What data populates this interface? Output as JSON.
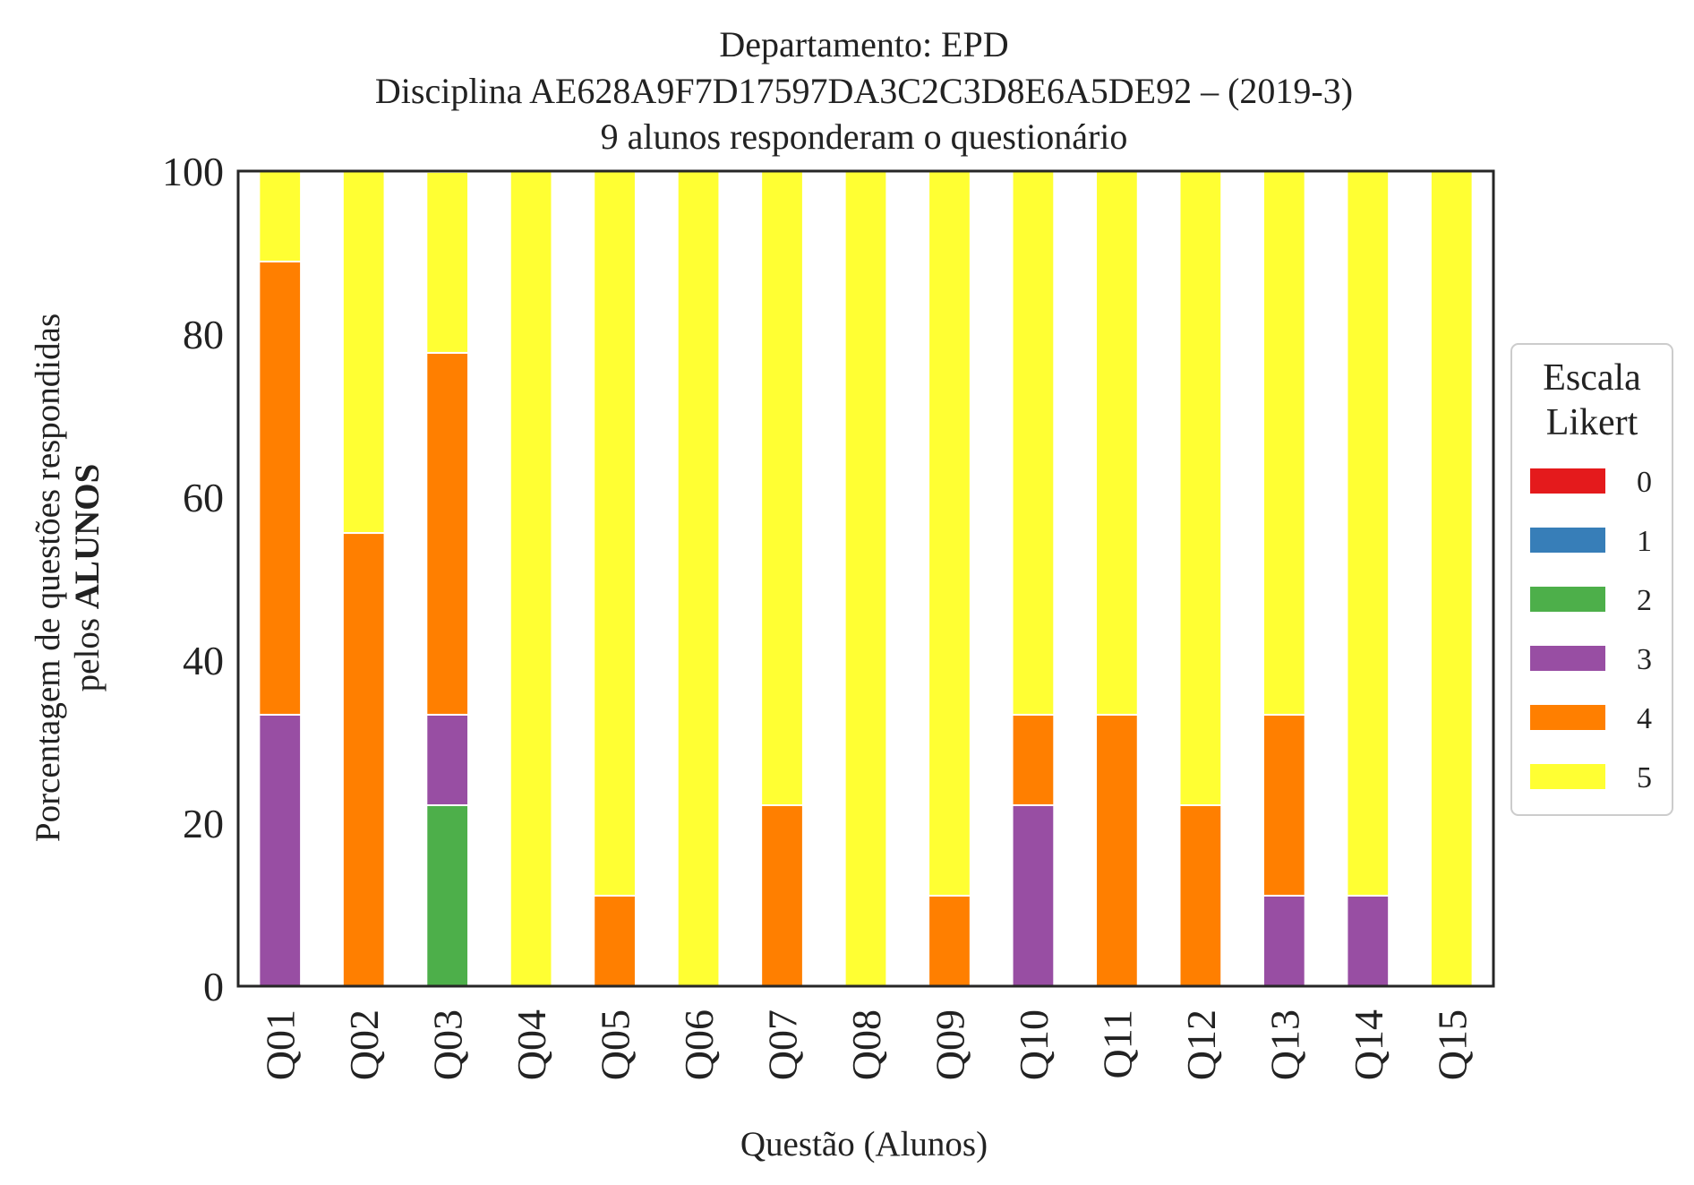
{
  "chart_data": {
    "type": "bar",
    "stacked": true,
    "title_lines": [
      "Departamento: EPD",
      "Disciplina AE628A9F7D17597DA3C2C3D8E6A5DE92 – (2019-3)",
      "9 alunos responderam o questionário"
    ],
    "xlabel": "Questão (Alunos)",
    "ylabel_line1": "Porcentagem de questões respondidas",
    "ylabel_line2_prefix": "pelos ",
    "ylabel_line2_bold": "ALUNOS",
    "ylim": [
      0,
      100
    ],
    "yticks": [
      "0",
      "20",
      "40",
      "60",
      "80",
      "100"
    ],
    "grid": false,
    "categories": [
      "Q01",
      "Q02",
      "Q03",
      "Q04",
      "Q05",
      "Q06",
      "Q07",
      "Q08",
      "Q09",
      "Q10",
      "Q11",
      "Q12",
      "Q13",
      "Q14",
      "Q15"
    ],
    "series": [
      {
        "name": "0",
        "color": "#e41a1c",
        "values": [
          0,
          0,
          0,
          0,
          0,
          0,
          0,
          0,
          0,
          0,
          0,
          0,
          0,
          0,
          0
        ]
      },
      {
        "name": "1",
        "color": "#377eb8",
        "values": [
          0,
          0,
          0,
          0,
          0,
          0,
          0,
          0,
          0,
          0,
          0,
          0,
          0,
          0,
          0
        ]
      },
      {
        "name": "2",
        "color": "#4daf4a",
        "values": [
          0,
          0,
          22.2,
          0,
          0,
          0,
          0,
          0,
          0,
          0,
          0,
          0,
          0,
          0,
          0
        ]
      },
      {
        "name": "3",
        "color": "#984ea3",
        "values": [
          33.3,
          0,
          11.1,
          0,
          0,
          0,
          0,
          0,
          0,
          22.2,
          0,
          0,
          11.1,
          11.1,
          0
        ]
      },
      {
        "name": "4",
        "color": "#ff7f00",
        "values": [
          55.6,
          55.6,
          44.4,
          0,
          11.1,
          0,
          22.2,
          0,
          11.1,
          11.1,
          33.3,
          22.2,
          22.2,
          0,
          0
        ]
      },
      {
        "name": "5",
        "color": "#ffff33",
        "values": [
          11.1,
          44.4,
          22.2,
          100,
          88.9,
          100,
          77.8,
          100,
          88.9,
          66.7,
          66.7,
          77.8,
          66.7,
          88.9,
          100
        ]
      }
    ],
    "legend": {
      "title_lines": [
        "Escala",
        "Likert"
      ],
      "placement": "right"
    }
  }
}
